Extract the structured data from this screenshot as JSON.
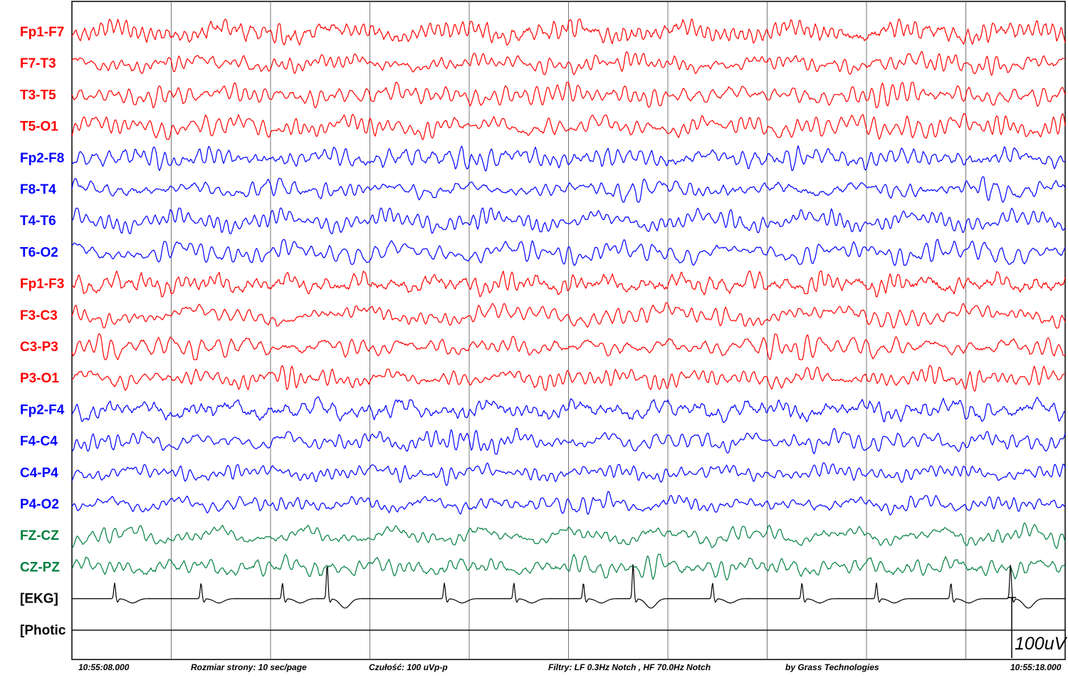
{
  "chart_data": {
    "type": "line",
    "channels": [
      {
        "name": "Fp1-F7",
        "color": "#ff0000"
      },
      {
        "name": "F7-T3",
        "color": "#ff0000"
      },
      {
        "name": "T3-T5",
        "color": "#ff0000"
      },
      {
        "name": "T5-O1",
        "color": "#ff0000"
      },
      {
        "name": "Fp2-F8",
        "color": "#0000ff"
      },
      {
        "name": "F8-T4",
        "color": "#0000ff"
      },
      {
        "name": "T4-T6",
        "color": "#0000ff"
      },
      {
        "name": "T6-O2",
        "color": "#0000ff"
      },
      {
        "name": "Fp1-F3",
        "color": "#ff0000"
      },
      {
        "name": "F3-C3",
        "color": "#ff0000"
      },
      {
        "name": "C3-P3",
        "color": "#ff0000"
      },
      {
        "name": "P3-O1",
        "color": "#ff0000"
      },
      {
        "name": "Fp2-F4",
        "color": "#0000ff"
      },
      {
        "name": "F4-C4",
        "color": "#0000ff"
      },
      {
        "name": "C4-P4",
        "color": "#0000ff"
      },
      {
        "name": "P4-O2",
        "color": "#0000ff"
      },
      {
        "name": "FZ-CZ",
        "color": "#008040"
      },
      {
        "name": "CZ-PZ",
        "color": "#008040"
      },
      {
        "name": "[EKG]",
        "color": "#000000"
      },
      {
        "name": "[Photic",
        "color": "#000000"
      }
    ],
    "ekg_beats_sec": [
      0.43,
      1.3,
      2.12,
      2.57,
      3.75,
      4.45,
      5.15,
      5.65,
      6.45,
      7.35,
      8.1,
      8.85,
      9.45
    ],
    "xlim_sec": [
      0,
      10
    ],
    "grid_interval_sec": 1,
    "scale_bar": "100uV",
    "time_start": "10:55:08.000",
    "time_end": "10:55:18.000"
  },
  "footer": {
    "page_size": "Rozmiar strony: 10 sec/page",
    "sensitivity": "Czułość:  100 uVp-p",
    "filters": "Filtry: LF  0.3Hz Notch , HF 70.0Hz Notch",
    "vendor": "by Grass Technologies"
  }
}
